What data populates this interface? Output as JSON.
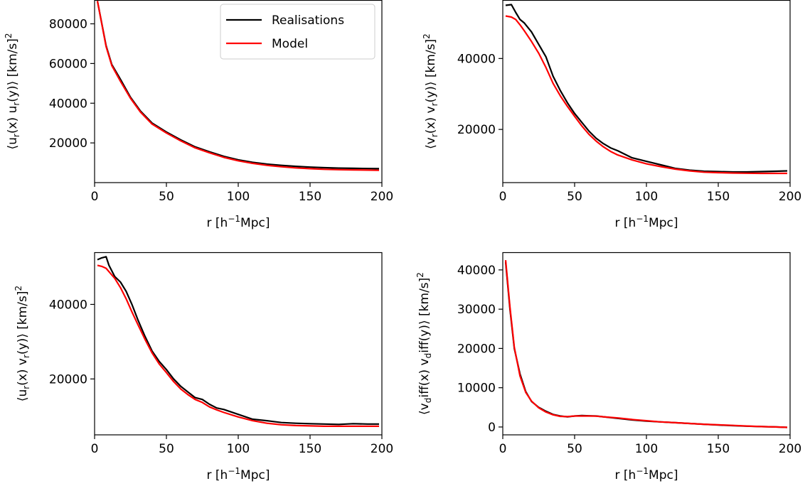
{
  "legend": {
    "realisations": "Realisations",
    "model": "Model"
  },
  "colors": {
    "realisations": "#000000",
    "model": "#ff0000"
  },
  "chart_data": [
    {
      "type": "line",
      "xlabel": "r [h^{-1}Mpc]",
      "ylabel": "⟨u_r(x) u_r(y)⟩ [km/s]^2",
      "xlim": [
        0,
        200
      ],
      "ylim": [
        0,
        92000
      ],
      "xticks": [
        0,
        50,
        100,
        150,
        200
      ],
      "yticks": [
        20000,
        40000,
        60000,
        80000
      ],
      "legend": "top-right",
      "series": [
        {
          "name": "Realisations",
          "x": [
            2,
            8,
            12,
            18,
            25,
            32,
            40,
            50,
            60,
            70,
            80,
            90,
            100,
            110,
            120,
            130,
            140,
            150,
            160,
            170,
            180,
            190,
            198
          ],
          "y": [
            91500,
            69000,
            59500,
            52000,
            43000,
            36000,
            30000,
            25500,
            21500,
            18000,
            15500,
            13200,
            11500,
            10200,
            9300,
            8700,
            8200,
            7800,
            7500,
            7300,
            7200,
            7100,
            7000
          ]
        },
        {
          "name": "Model",
          "x": [
            2,
            8,
            12,
            18,
            25,
            32,
            40,
            50,
            60,
            70,
            80,
            90,
            100,
            110,
            120,
            130,
            140,
            150,
            160,
            170,
            180,
            190,
            198
          ],
          "y": [
            91500,
            68500,
            59000,
            51000,
            42500,
            35500,
            29500,
            25000,
            21000,
            17500,
            15000,
            12700,
            11000,
            9700,
            8700,
            8000,
            7400,
            7000,
            6700,
            6500,
            6400,
            6300,
            6200
          ]
        }
      ]
    },
    {
      "type": "line",
      "xlabel": "r [h^{-1}Mpc]",
      "ylabel": "⟨v_r(x) v_r(y)⟩ [km/s]^2",
      "xlim": [
        0,
        200
      ],
      "ylim": [
        5000,
        56500
      ],
      "xticks": [
        0,
        50,
        100,
        150,
        200
      ],
      "yticks": [
        20000,
        40000
      ],
      "series": [
        {
          "name": "Realisations",
          "x": [
            2,
            6,
            9,
            12,
            15,
            20,
            25,
            30,
            35,
            40,
            45,
            50,
            55,
            60,
            65,
            70,
            75,
            80,
            90,
            100,
            110,
            120,
            130,
            140,
            150,
            160,
            170,
            180,
            190,
            198
          ],
          "y": [
            55000,
            55200,
            53000,
            51000,
            50000,
            47500,
            44000,
            40500,
            35000,
            31000,
            27500,
            24500,
            22000,
            19500,
            17500,
            16000,
            14800,
            14000,
            12000,
            11000,
            10000,
            9000,
            8500,
            8200,
            8100,
            8000,
            8000,
            8100,
            8200,
            8300
          ]
        },
        {
          "name": "Model",
          "x": [
            2,
            6,
            9,
            12,
            15,
            20,
            25,
            30,
            35,
            40,
            45,
            50,
            55,
            60,
            65,
            70,
            75,
            80,
            90,
            100,
            110,
            120,
            130,
            140,
            150,
            160,
            170,
            180,
            190,
            198
          ],
          "y": [
            52000,
            51700,
            51000,
            49500,
            47800,
            44800,
            41500,
            37500,
            33000,
            29500,
            26500,
            23700,
            21000,
            18600,
            16700,
            15100,
            13800,
            12800,
            11400,
            10300,
            9500,
            8800,
            8300,
            7950,
            7800,
            7700,
            7650,
            7600,
            7600,
            7600
          ]
        }
      ]
    },
    {
      "type": "line",
      "xlabel": "r [h^{-1}Mpc]",
      "ylabel": "⟨u_r(x) v_r(y)⟩ [km/s]^2",
      "xlim": [
        0,
        200
      ],
      "ylim": [
        5000,
        54000
      ],
      "xticks": [
        0,
        50,
        100,
        150,
        200
      ],
      "yticks": [
        20000,
        40000
      ],
      "series": [
        {
          "name": "Realisations",
          "x": [
            2,
            5,
            8,
            10,
            14,
            18,
            22,
            26,
            30,
            35,
            40,
            45,
            50,
            55,
            60,
            65,
            70,
            75,
            80,
            85,
            90,
            100,
            110,
            120,
            130,
            140,
            150,
            160,
            170,
            180,
            190,
            198
          ],
          "y": [
            52000,
            52500,
            52800,
            50500,
            47500,
            46000,
            43500,
            40000,
            36000,
            31500,
            27500,
            24700,
            22500,
            20000,
            18000,
            16500,
            15000,
            14500,
            13200,
            12200,
            11800,
            10500,
            9200,
            8800,
            8300,
            8100,
            8000,
            7900,
            7800,
            8000,
            7900,
            7900
          ]
        },
        {
          "name": "Model",
          "x": [
            2,
            5,
            8,
            10,
            14,
            18,
            22,
            26,
            30,
            35,
            40,
            45,
            50,
            55,
            60,
            65,
            70,
            75,
            80,
            85,
            90,
            100,
            110,
            120,
            130,
            140,
            150,
            160,
            170,
            180,
            190,
            198
          ],
          "y": [
            50500,
            50200,
            49700,
            48800,
            47000,
            44500,
            41500,
            38000,
            34700,
            30700,
            27000,
            24000,
            21700,
            19300,
            17300,
            15800,
            14500,
            13700,
            12500,
            11700,
            11000,
            9800,
            8800,
            8100,
            7700,
            7500,
            7400,
            7300,
            7300,
            7300,
            7300,
            7300
          ]
        }
      ]
    },
    {
      "type": "line",
      "xlabel": "r [h^{-1}Mpc]",
      "ylabel": "⟨v_diff(x) v_diff(y)⟩ [km/s]^2",
      "xlim": [
        0,
        200
      ],
      "ylim": [
        -2000,
        44500
      ],
      "xticks": [
        0,
        50,
        100,
        150,
        200
      ],
      "yticks": [
        0,
        10000,
        20000,
        30000,
        40000
      ],
      "series": [
        {
          "name": "Realisations",
          "x": [
            2,
            5,
            8,
            12,
            16,
            20,
            25,
            30,
            35,
            40,
            45,
            50,
            55,
            60,
            65,
            70,
            80,
            90,
            100,
            110,
            120,
            130,
            140,
            150,
            160,
            170,
            180,
            190,
            198
          ],
          "y": [
            42000,
            30000,
            20000,
            13500,
            9000,
            6500,
            5000,
            4000,
            3200,
            2800,
            2600,
            2800,
            2900,
            2850,
            2800,
            2600,
            2200,
            1800,
            1500,
            1300,
            1100,
            900,
            700,
            500,
            350,
            200,
            100,
            0,
            -100
          ]
        },
        {
          "name": "Model",
          "x": [
            2,
            5,
            8,
            12,
            16,
            20,
            25,
            30,
            35,
            40,
            45,
            50,
            55,
            60,
            65,
            70,
            80,
            90,
            100,
            110,
            120,
            130,
            140,
            150,
            160,
            170,
            180,
            190,
            198
          ],
          "y": [
            42500,
            30500,
            20300,
            13000,
            8800,
            6600,
            4900,
            3800,
            3100,
            2700,
            2650,
            2800,
            2800,
            2800,
            2750,
            2600,
            2300,
            1900,
            1600,
            1300,
            1100,
            900,
            700,
            550,
            400,
            250,
            100,
            0,
            -100
          ]
        }
      ]
    }
  ]
}
